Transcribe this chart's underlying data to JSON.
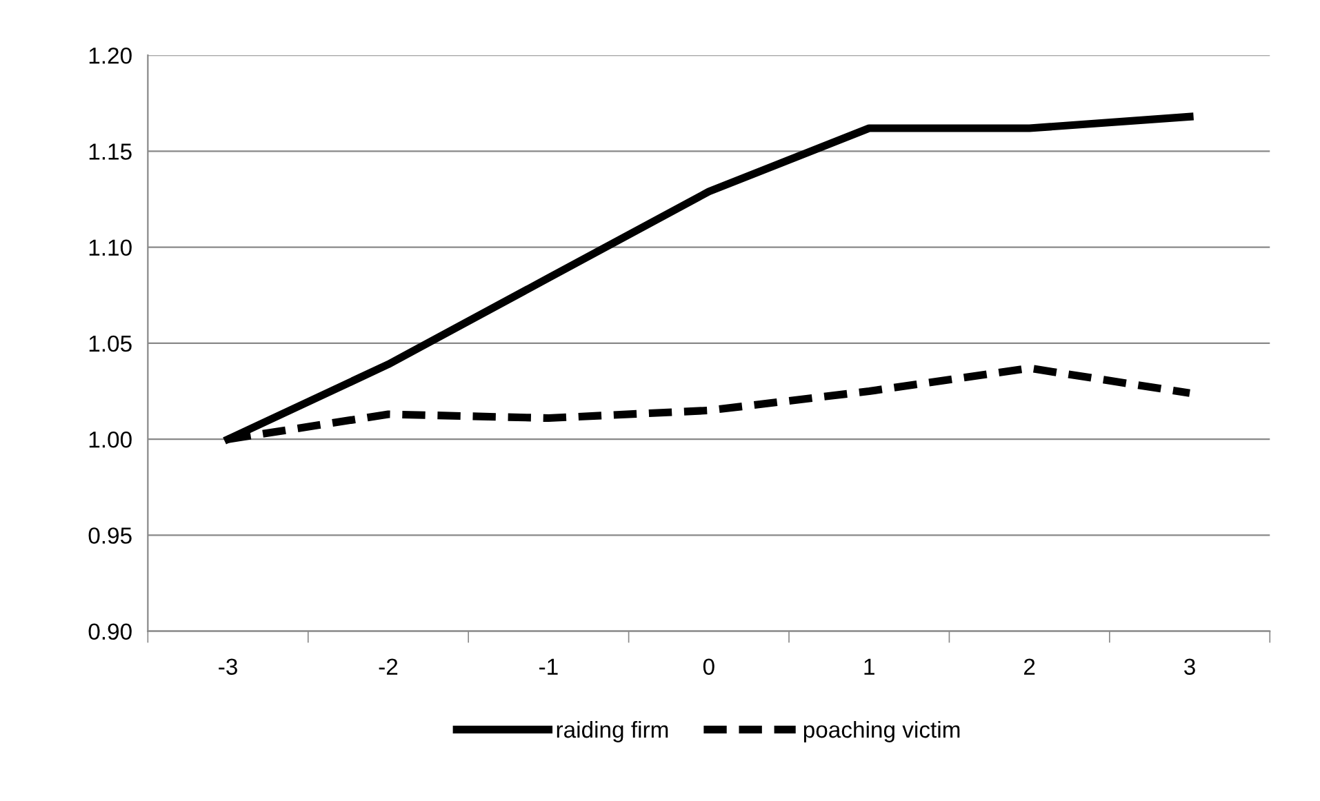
{
  "chart_data": {
    "type": "line",
    "categories": [
      "-3",
      "-2",
      "-1",
      "0",
      "1",
      "2",
      "3"
    ],
    "series": [
      {
        "name": "raiding firm",
        "color": "#000000",
        "line_style": "solid",
        "values": [
          1.0,
          1.039,
          1.084,
          1.129,
          1.162,
          1.162,
          1.168
        ]
      },
      {
        "name": "poaching victim",
        "color": "#000000",
        "line_style": "dashed",
        "values": [
          1.0,
          1.013,
          1.011,
          1.015,
          1.025,
          1.037,
          1.024
        ]
      }
    ],
    "ylim": [
      0.9,
      1.2
    ],
    "yticks": [
      {
        "value": 0.9,
        "label": "0.90"
      },
      {
        "value": 0.95,
        "label": "0.95"
      },
      {
        "value": 1.0,
        "label": "1.00"
      },
      {
        "value": 1.05,
        "label": "1.05"
      },
      {
        "value": 1.1,
        "label": "1.10"
      },
      {
        "value": 1.15,
        "label": "1.15"
      },
      {
        "value": 1.2,
        "label": "1.20"
      }
    ],
    "grid": "y",
    "legend": "bottom",
    "marker": "none"
  }
}
